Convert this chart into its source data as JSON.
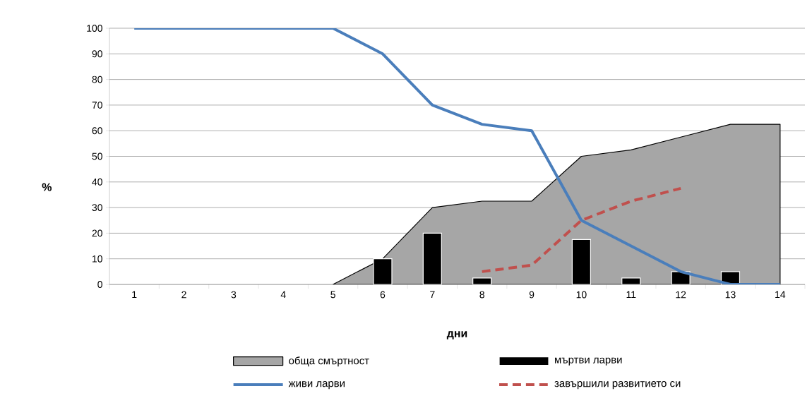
{
  "chart_data": {
    "type": "line",
    "xlabel": "дни",
    "ylabel": "%",
    "categories": [
      "1",
      "2",
      "3",
      "4",
      "5",
      "6",
      "7",
      "8",
      "9",
      "10",
      "11",
      "12",
      "13",
      "14"
    ],
    "ylim": [
      0,
      100
    ],
    "yticks": [
      0,
      10,
      20,
      30,
      40,
      50,
      60,
      70,
      80,
      90,
      100
    ],
    "grid": "y",
    "legend": "bottom",
    "series": [
      {
        "name": "обща смъртност",
        "type": "area",
        "color": "#a6a6a6",
        "values": [
          null,
          null,
          null,
          null,
          0,
          10,
          30,
          32.5,
          32.5,
          50,
          52.5,
          57.5,
          62.5,
          62.5
        ]
      },
      {
        "name": "мъртви ларви",
        "type": "bar",
        "color": "#000000",
        "values": [
          null,
          null,
          null,
          null,
          null,
          10,
          20,
          2.5,
          null,
          17.5,
          2.5,
          5,
          5,
          null
        ]
      },
      {
        "name": "живи ларви",
        "color": "#4a7ebb",
        "line_style": "solid",
        "values": [
          100,
          100,
          100,
          100,
          100,
          90,
          70,
          62.5,
          60,
          25,
          15,
          5,
          0,
          0
        ]
      },
      {
        "name": "завършили развитието си",
        "color": "#c0504d",
        "line_style": "dashed",
        "values": [
          null,
          null,
          null,
          null,
          null,
          null,
          null,
          5,
          7.5,
          25,
          32.5,
          37.5,
          null,
          null
        ]
      }
    ]
  }
}
